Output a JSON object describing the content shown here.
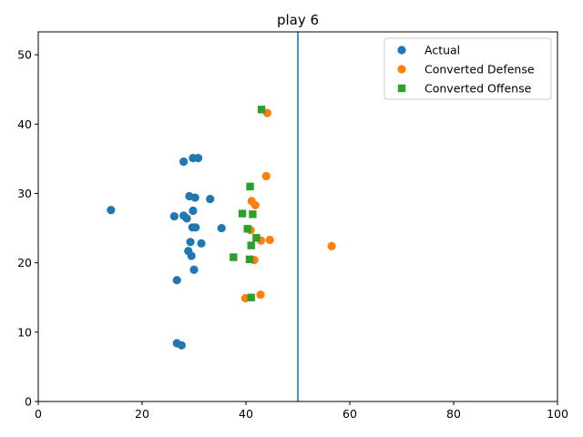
{
  "chart_data": {
    "type": "scatter",
    "title": "play 6",
    "xlabel": "",
    "ylabel": "",
    "xlim": [
      0,
      100
    ],
    "ylim": [
      0,
      53.3
    ],
    "x_ticks": [
      0,
      20,
      40,
      60,
      80,
      100
    ],
    "y_ticks": [
      0,
      10,
      20,
      30,
      40,
      50
    ],
    "vline": {
      "x": 50,
      "color": "#1f77b4"
    },
    "grid": false,
    "legend_position": "top-right",
    "series": [
      {
        "name": "Actual",
        "marker": "circle",
        "color": "#1f77b4",
        "points": [
          [
            14.0,
            27.6
          ],
          [
            26.2,
            26.7
          ],
          [
            26.7,
            17.5
          ],
          [
            26.7,
            8.4
          ],
          [
            27.6,
            8.1
          ],
          [
            28.0,
            34.6
          ],
          [
            28.0,
            26.8
          ],
          [
            28.6,
            26.4
          ],
          [
            28.9,
            21.7
          ],
          [
            29.1,
            29.6
          ],
          [
            29.3,
            23.0
          ],
          [
            29.5,
            21.0
          ],
          [
            29.7,
            25.1
          ],
          [
            29.8,
            35.1
          ],
          [
            29.8,
            27.5
          ],
          [
            30.0,
            19.0
          ],
          [
            30.2,
            29.4
          ],
          [
            30.3,
            25.1
          ],
          [
            30.8,
            35.1
          ],
          [
            31.4,
            22.8
          ],
          [
            33.1,
            29.2
          ],
          [
            35.3,
            25.0
          ]
        ]
      },
      {
        "name": "Converted Defense",
        "marker": "circle",
        "color": "#ff7f0e",
        "points": [
          [
            39.9,
            14.9
          ],
          [
            40.9,
            24.7
          ],
          [
            41.1,
            28.9
          ],
          [
            41.6,
            20.4
          ],
          [
            41.8,
            28.3
          ],
          [
            42.8,
            15.4
          ],
          [
            42.9,
            23.2
          ],
          [
            43.9,
            32.5
          ],
          [
            44.1,
            41.6
          ],
          [
            44.6,
            23.3
          ],
          [
            56.5,
            22.4
          ]
        ]
      },
      {
        "name": "Converted Offense",
        "marker": "square",
        "color": "#2ca02c",
        "points": [
          [
            37.6,
            20.8
          ],
          [
            39.3,
            27.1
          ],
          [
            40.3,
            24.9
          ],
          [
            40.7,
            20.5
          ],
          [
            40.8,
            31.0
          ],
          [
            41.0,
            15.0
          ],
          [
            41.0,
            22.5
          ],
          [
            41.3,
            27.0
          ],
          [
            42.0,
            23.6
          ],
          [
            43.0,
            42.1
          ]
        ]
      }
    ]
  }
}
